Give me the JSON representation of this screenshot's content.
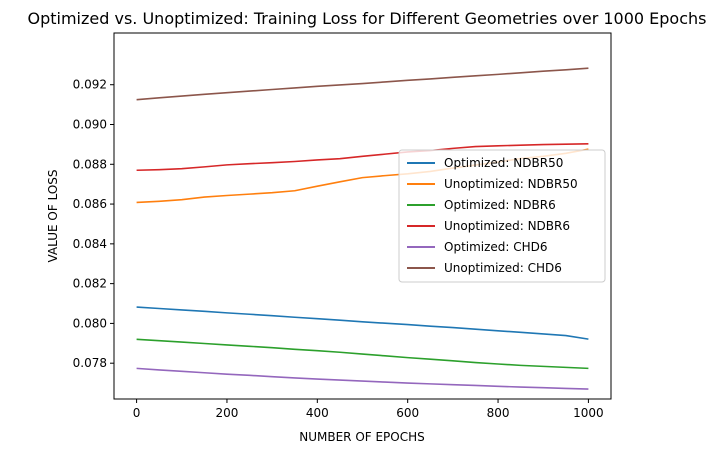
{
  "chart_data": {
    "type": "line",
    "title": "Optimized vs. Unoptimized: Training Loss for Different Geometries over 1000 Epochs",
    "xlabel": "NUMBER OF EPOCHS",
    "ylabel": "VALUE OF LOSS",
    "xlim": [
      -50,
      1050
    ],
    "ylim": [
      0.0762,
      0.0946
    ],
    "xticks": [
      0,
      200,
      400,
      600,
      800,
      1000
    ],
    "yticks": [
      0.078,
      0.08,
      0.082,
      0.084,
      0.086,
      0.088,
      0.09,
      0.092
    ],
    "ytick_labels": [
      "0.078",
      "0.080",
      "0.082",
      "0.084",
      "0.086",
      "0.088",
      "0.090",
      "0.092"
    ],
    "grid": false,
    "legend_position": "center-right",
    "x": [
      0,
      50,
      100,
      150,
      200,
      250,
      300,
      350,
      400,
      450,
      500,
      550,
      600,
      650,
      700,
      750,
      800,
      850,
      900,
      950,
      1000
    ],
    "series": [
      {
        "name": "Optimized: NDBR50",
        "color": "#1f77b4",
        "values": [
          0.08082,
          0.08075,
          0.08068,
          0.08061,
          0.08053,
          0.08046,
          0.08039,
          0.08031,
          0.08024,
          0.08016,
          0.08008,
          0.08001,
          0.07994,
          0.07986,
          0.07979,
          0.07971,
          0.07963,
          0.07955,
          0.07947,
          0.07939,
          0.07921
        ]
      },
      {
        "name": "Unoptimized: NDBR50",
        "color": "#ff7f0e",
        "values": [
          0.08608,
          0.08614,
          0.08622,
          0.08635,
          0.08643,
          0.0865,
          0.08657,
          0.08667,
          0.0869,
          0.08712,
          0.08733,
          0.08743,
          0.08752,
          0.08764,
          0.08781,
          0.08796,
          0.08811,
          0.08829,
          0.0884,
          0.08855,
          0.08876
        ]
      },
      {
        "name": "Optimized: NDBR6",
        "color": "#2ca02c",
        "values": [
          0.0792,
          0.07913,
          0.07906,
          0.07899,
          0.07892,
          0.07885,
          0.07878,
          0.0787,
          0.07863,
          0.07855,
          0.07846,
          0.07837,
          0.07828,
          0.0782,
          0.07812,
          0.07803,
          0.07796,
          0.07789,
          0.07784,
          0.07779,
          0.07774
        ]
      },
      {
        "name": "Unoptimized: NDBR6",
        "color": "#d62728",
        "values": [
          0.0877,
          0.08773,
          0.08778,
          0.08787,
          0.08797,
          0.08803,
          0.08808,
          0.08814,
          0.08822,
          0.08828,
          0.0884,
          0.08851,
          0.08862,
          0.08869,
          0.0888,
          0.08889,
          0.08893,
          0.08896,
          0.08899,
          0.08901,
          0.08903
        ]
      },
      {
        "name": "Optimized: CHD6",
        "color": "#9467bd",
        "values": [
          0.07774,
          0.07766,
          0.07759,
          0.07752,
          0.07745,
          0.07739,
          0.07732,
          0.07726,
          0.0772,
          0.07715,
          0.0771,
          0.07705,
          0.077,
          0.07696,
          0.07692,
          0.07688,
          0.07684,
          0.0768,
          0.07677,
          0.07673,
          0.0767
        ]
      },
      {
        "name": "Unoptimized: CHD6",
        "color": "#8c564b",
        "values": [
          0.09125,
          0.09134,
          0.09143,
          0.09152,
          0.0916,
          0.09168,
          0.09176,
          0.09184,
          0.09192,
          0.09199,
          0.09206,
          0.09214,
          0.09222,
          0.09229,
          0.09237,
          0.09245,
          0.09252,
          0.0926,
          0.09268,
          0.09275,
          0.09283
        ]
      }
    ]
  }
}
